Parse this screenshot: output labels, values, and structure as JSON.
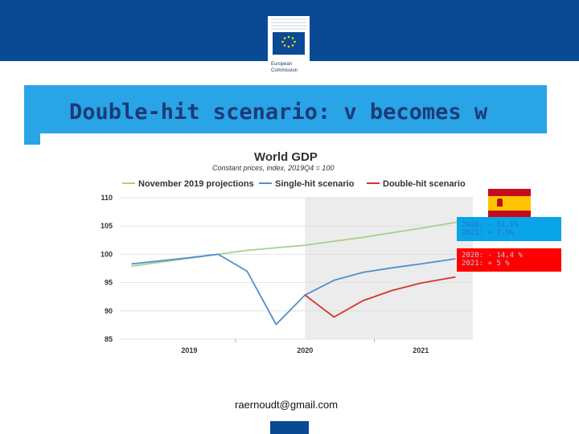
{
  "slide": {
    "title": "Double-hit scenario: v becomes w",
    "logo_line1": "European",
    "logo_line2": "Commission",
    "footer_email": "raernoudt@gmail.com"
  },
  "annotations": {
    "single_hit_line1": "2020: - 11,1%",
    "single_hit_line2": "2021: + 7,5%",
    "double_hit_line1": "2020: - 14,4 %",
    "double_hit_line2": "2021: + 5 %"
  },
  "colors": {
    "brand_blue": "#0a4a94",
    "title_bar": "#2aa2e4",
    "title_text": "#1c3a78",
    "projection": "#a8d08d",
    "single_hit": "#4f8fd0",
    "double_hit": "#d0372e",
    "shade": "#ececec"
  },
  "chart_data": {
    "type": "line",
    "title": "World GDP",
    "subtitle": "Constant prices, index, 2019Q4 = 100",
    "ylim": [
      85,
      110
    ],
    "yticks": [
      85,
      90,
      95,
      100,
      105,
      110
    ],
    "x_ticks": [
      {
        "label": "2019",
        "x": 2019.5
      },
      {
        "label": "2020",
        "x": 2020.5
      },
      {
        "label": "2021",
        "x": 2021.5
      }
    ],
    "xlim": [
      2018.9,
      2021.95
    ],
    "shade_start": 2020.5,
    "legend_position": "top",
    "series": [
      {
        "name": "November 2019 projections",
        "color": "#a8d08d",
        "points": [
          [
            2019.0,
            97.9
          ],
          [
            2019.75,
            100.0
          ],
          [
            2020.0,
            100.7
          ],
          [
            2020.5,
            101.6
          ],
          [
            2021.0,
            103.0
          ],
          [
            2021.5,
            104.6
          ],
          [
            2021.9,
            106.0
          ]
        ]
      },
      {
        "name": "Single-hit scenario",
        "color": "#4f8fd0",
        "points": [
          [
            2019.0,
            98.3
          ],
          [
            2019.5,
            99.4
          ],
          [
            2019.75,
            100.0
          ],
          [
            2020.0,
            97.0
          ],
          [
            2020.25,
            87.6
          ],
          [
            2020.5,
            92.8
          ],
          [
            2020.75,
            95.4
          ],
          [
            2021.0,
            96.8
          ],
          [
            2021.25,
            97.6
          ],
          [
            2021.5,
            98.3
          ],
          [
            2021.8,
            99.2
          ]
        ]
      },
      {
        "name": "Double-hit scenario",
        "color": "#d0372e",
        "points": [
          [
            2020.5,
            92.8
          ],
          [
            2020.75,
            88.9
          ],
          [
            2021.0,
            91.8
          ],
          [
            2021.25,
            93.6
          ],
          [
            2021.5,
            94.9
          ],
          [
            2021.8,
            96.0
          ]
        ]
      }
    ]
  }
}
